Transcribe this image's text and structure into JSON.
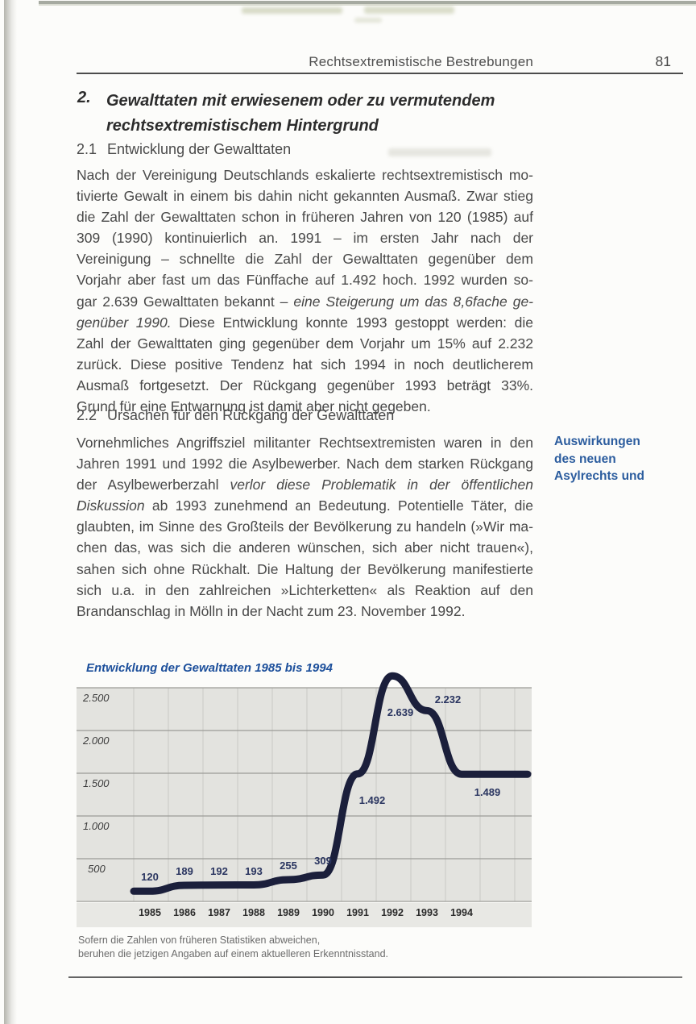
{
  "page_header": {
    "title": "Rechtsextremistische Bestrebungen",
    "page_number": "81"
  },
  "heading": {
    "number": "2.",
    "text": "Gewalttaten mit erwiesenem oder zu vermutendem rechtsextremistischem Hintergrund",
    "line1": "Gewalttaten mit erwiesenem oder zu vermutendem",
    "line2": "rechtsextremistischem Hintergrund"
  },
  "section_21": {
    "number": "2.1",
    "title": "Entwicklung der Gewalttaten"
  },
  "section_22": {
    "number": "2.2",
    "title": "Ursachen für den Rückgang der Gewalttaten"
  },
  "paragraphs": {
    "p21": [
      [
        {
          "t": "Nach der Vereinigung Deutschlands eskalierte rechtsextremistisch mo-"
        }
      ],
      [
        {
          "t": "tivierte Gewalt in einem bis dahin nicht gekannten Ausmaß. Zwar stieg"
        }
      ],
      [
        {
          "t": "die Zahl der Gewalttaten schon in früheren Jahren von 120 (1985) auf"
        }
      ],
      [
        {
          "t": "309 (1990) kontinuierlich an. 1991 – im ersten Jahr nach der"
        }
      ],
      [
        {
          "t": "Vereinigung – schnellte die Zahl der Gewalttaten gegenüber dem"
        }
      ],
      [
        {
          "t": "Vorjahr aber fast um das Fünffache auf 1.492 hoch. 1992 wurden so-"
        }
      ],
      [
        {
          "t": "gar 2.639 Gewalttaten bekannt – "
        },
        {
          "t": "eine Steigerung um das 8,6fache ge-",
          "i": 1
        }
      ],
      [
        {
          "t": "genüber 1990.",
          "i": 1
        },
        {
          "t": " Diese Entwicklung konnte 1993 gestoppt werden: die"
        }
      ],
      [
        {
          "t": "Zahl der Gewalttaten ging gegenüber dem Vorjahr um 15% auf 2.232"
        }
      ],
      [
        {
          "t": "zurück. Diese positive Tendenz hat sich 1994 in noch deutlicherem"
        }
      ],
      [
        {
          "t": "Ausmaß fortgesetzt. Der Rückgang gegenüber 1993 beträgt 33%."
        }
      ],
      [
        {
          "t": "Grund für eine Entwarnung ist damit aber nicht gegeben."
        }
      ]
    ],
    "p22": [
      [
        {
          "t": "Vornehmliches Angriffsziel militanter Rechtsextremisten waren in den"
        }
      ],
      [
        {
          "t": "Jahren 1991 und 1992 die Asylbewerber. Nach dem starken Rückgang"
        }
      ],
      [
        {
          "t": "der Asylbewerberzahl "
        },
        {
          "t": "verlor diese Problematik in der öffentlichen",
          "i": 1
        }
      ],
      [
        {
          "t": "Diskussion",
          "i": 1
        },
        {
          "t": " ab 1993 zunehmend an Bedeutung. Potentielle Täter, die"
        }
      ],
      [
        {
          "t": "glaubten, im Sinne des Großteils der Bevölkerung zu handeln (»Wir ma-"
        }
      ],
      [
        {
          "t": "chen das, was sich die anderen wünschen, sich aber nicht trauen«),"
        }
      ],
      [
        {
          "t": "sahen sich ohne Rückhalt. Die Haltung der Bevölkerung manifestierte"
        }
      ],
      [
        {
          "t": "sich u.a. in den zahlreichen »Lichterketten« als Reaktion auf den"
        }
      ],
      [
        {
          "t": "Brandanschlag in Mölln in der Nacht zum 23. November 1992."
        }
      ]
    ]
  },
  "margin_note": {
    "lines": [
      "Auswirkungen",
      "des neuen",
      "Asylrechts und"
    ],
    "color": "#2b5c9e"
  },
  "chart_data": {
    "type": "line",
    "title": "Entwicklung der Gewalttaten 1985 bis 1994",
    "categories": [
      "1985",
      "1986",
      "1987",
      "1988",
      "1989",
      "1990",
      "1991",
      "1992",
      "1993",
      "1994"
    ],
    "values": [
      120,
      189,
      192,
      193,
      255,
      309,
      1492,
      2639,
      2232,
      1489
    ],
    "point_labels": [
      "120",
      "189",
      "192",
      "193",
      "255",
      "309",
      "1.492",
      "2.639",
      "2.232",
      "1.489"
    ],
    "y_tick_labels": [
      "2.500",
      "2.000",
      "1.500",
      "1.000",
      "500"
    ],
    "ylim": [
      0,
      2500
    ],
    "grid": "horizontal and vertical, light gray on gray panel",
    "legend": "none",
    "colors": {
      "title_blue": "#1c4f9b",
      "line_navy": "#1b1f3b",
      "label_navy": "#2a3560",
      "plot_bg": "#e3e3df"
    }
  },
  "footnote": {
    "lines": [
      "Sofern die Zahlen von früheren Statistiken abweichen,",
      "beruhen die jetzigen Angaben auf einem aktuelleren Erkenntnisstand."
    ]
  }
}
